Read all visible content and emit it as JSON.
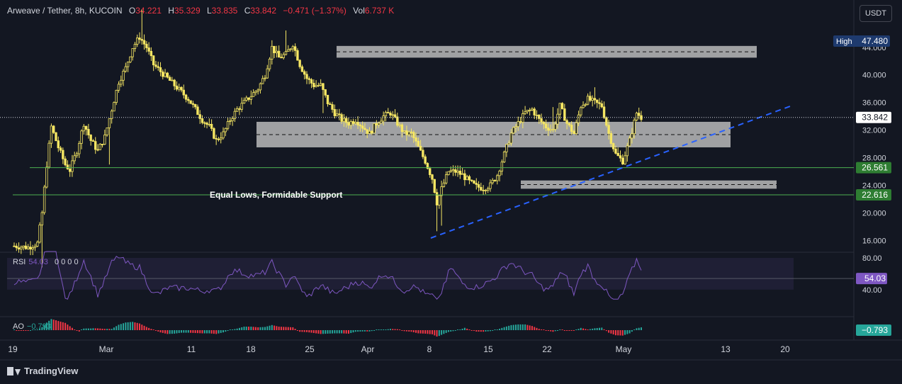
{
  "header": {
    "symbol": "Arweave / Tether, 8h, KUCOIN",
    "o_label": "O",
    "o_value": "34.221",
    "h_label": "H",
    "h_value": "35.329",
    "l_label": "L",
    "l_value": "33.835",
    "c_label": "C",
    "c_value": "33.842",
    "change": "−0.471 (−1.37%)",
    "vol_label": "Vol",
    "vol_value": "6.737 K"
  },
  "currency_button": "USDT",
  "annotation": "Equal Lows, Formidable Support",
  "price_axis": {
    "ticks": [
      "44.000",
      "40.000",
      "36.000",
      "32.000",
      "28.000",
      "24.000",
      "20.000",
      "16.000"
    ],
    "high_label": "High",
    "high_value": "47.480",
    "last_price": "33.842",
    "level_1": "26.561",
    "level_2": "22.616"
  },
  "rsi": {
    "label": "RSI",
    "value": "54.03",
    "extra": "0 0 0 0",
    "ticks": [
      "80.00",
      "40.00"
    ],
    "last_badge": "54.03"
  },
  "ao": {
    "label": "AO",
    "value": "−0.793",
    "last_badge": "−0.793"
  },
  "time_axis": [
    "19",
    "Mar",
    "11",
    "18",
    "25",
    "Apr",
    "8",
    "15",
    "22",
    "May",
    "13",
    "20"
  ],
  "branding": "TradingView",
  "colors": {
    "background": "#131722",
    "candle": "#f5e663",
    "zone": "#c4c4c4",
    "support_line": "#4caf50",
    "trendline": "#2962ff",
    "rsi_line": "#7e57c2",
    "ao_up": "#26a69a",
    "ao_down": "#f23645"
  },
  "chart_data": {
    "type": "candlestick",
    "title": "Arweave / Tether, 8h, KUCOIN",
    "ylim": [
      14.4,
      48.6
    ],
    "y_ticks": [
      16,
      20,
      24,
      28,
      32,
      36,
      40,
      44
    ],
    "x_ticks": [
      "19",
      "Mar",
      "11",
      "18",
      "25",
      "Apr",
      "8",
      "15",
      "22",
      "May",
      "13",
      "20"
    ],
    "close_path": [
      [
        0,
        15.2
      ],
      [
        6,
        15.0
      ],
      [
        10,
        15.6
      ],
      [
        12,
        20.0
      ],
      [
        14,
        27.0
      ],
      [
        16,
        32.5
      ],
      [
        19,
        29.5
      ],
      [
        22,
        27.0
      ],
      [
        24,
        26.2
      ],
      [
        27,
        29.0
      ],
      [
        30,
        33.0
      ],
      [
        33,
        30.5
      ],
      [
        36,
        29.0
      ],
      [
        39,
        31.0
      ],
      [
        42,
        35.0
      ],
      [
        45,
        39.0
      ],
      [
        48,
        41.0
      ],
      [
        51,
        44.0
      ],
      [
        54,
        45.5
      ],
      [
        57,
        44.0
      ],
      [
        60,
        41.5
      ],
      [
        63,
        40.5
      ],
      [
        66,
        39.5
      ],
      [
        69,
        38.5
      ],
      [
        72,
        37.5
      ],
      [
        75,
        36.5
      ],
      [
        78,
        35.0
      ],
      [
        81,
        33.5
      ],
      [
        84,
        32.5
      ],
      [
        87,
        30.5
      ],
      [
        90,
        31.5
      ],
      [
        93,
        33.5
      ],
      [
        96,
        35.0
      ],
      [
        99,
        36.0
      ],
      [
        102,
        37.0
      ],
      [
        105,
        38.0
      ],
      [
        108,
        40.0
      ],
      [
        111,
        44.0
      ],
      [
        114,
        42.5
      ],
      [
        117,
        43.0
      ],
      [
        120,
        44.5
      ],
      [
        123,
        41.5
      ],
      [
        126,
        39.5
      ],
      [
        129,
        38.5
      ],
      [
        132,
        38.5
      ],
      [
        135,
        36.0
      ],
      [
        138,
        34.5
      ],
      [
        141,
        33.5
      ],
      [
        144,
        33.0
      ],
      [
        147,
        33.5
      ],
      [
        150,
        32.5
      ],
      [
        153,
        31.5
      ],
      [
        156,
        33.0
      ],
      [
        159,
        34.0
      ],
      [
        162,
        34.5
      ],
      [
        165,
        33.0
      ],
      [
        168,
        31.5
      ],
      [
        171,
        31.5
      ],
      [
        174,
        29.5
      ],
      [
        177,
        27.5
      ],
      [
        180,
        25.0
      ],
      [
        182,
        21.5
      ],
      [
        184,
        23.5
      ],
      [
        187,
        26.0
      ],
      [
        190,
        26.0
      ],
      [
        193,
        25.5
      ],
      [
        196,
        24.5
      ],
      [
        199,
        23.8
      ],
      [
        202,
        23.6
      ],
      [
        205,
        24.0
      ],
      [
        208,
        25.5
      ],
      [
        211,
        28.5
      ],
      [
        214,
        31.5
      ],
      [
        217,
        33.0
      ],
      [
        220,
        34.5
      ],
      [
        223,
        35.0
      ],
      [
        226,
        33.5
      ],
      [
        229,
        32.5
      ],
      [
        232,
        32.0
      ],
      [
        235,
        35.5
      ],
      [
        238,
        33.0
      ],
      [
        241,
        31.5
      ],
      [
        244,
        35.5
      ],
      [
        247,
        36.5
      ],
      [
        250,
        36.0
      ],
      [
        253,
        35.5
      ],
      [
        256,
        31.5
      ],
      [
        259,
        28.5
      ],
      [
        262,
        27.5
      ],
      [
        265,
        30.5
      ],
      [
        268,
        34.5
      ],
      [
        270,
        33.842
      ]
    ],
    "annotations": [
      {
        "type": "zone",
        "from": 42.5,
        "to": 44.2
      },
      {
        "type": "zone",
        "from": 29.5,
        "to": 33.2
      },
      {
        "type": "zone",
        "from": 23.5,
        "to": 24.7
      },
      {
        "type": "horizontal_line",
        "value": 26.561
      },
      {
        "type": "horizontal_line",
        "value": 22.616
      },
      {
        "type": "trendline",
        "direction": "up"
      }
    ],
    "subpanes": [
      {
        "name": "RSI",
        "last": 54.03,
        "levels": [
          80,
          40
        ]
      },
      {
        "name": "AO",
        "last": -0.793
      }
    ]
  }
}
